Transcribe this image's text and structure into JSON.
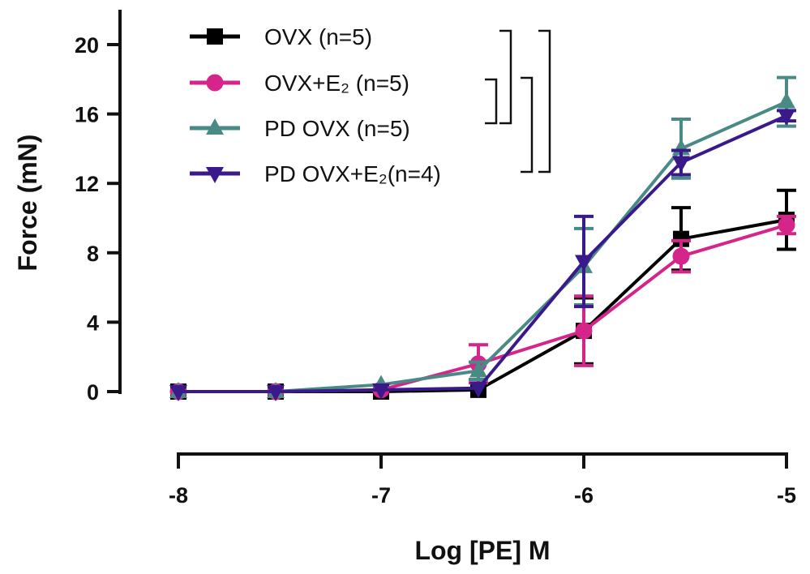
{
  "chart_data": {
    "type": "line",
    "xlabel": "Log [PE] M",
    "ylabel": "Force (mN)",
    "xlim": [
      -8,
      -5
    ],
    "ylim": [
      0,
      20
    ],
    "x_ticks": [
      "-8",
      "-7",
      "-6",
      "-5"
    ],
    "y_ticks": [
      "0",
      "4",
      "8",
      "12",
      "16",
      "20"
    ],
    "grid": false,
    "legend_position": "top-left",
    "x": [
      -8,
      -7.52,
      -7,
      -6.52,
      -6,
      -5.52,
      -5
    ],
    "series": [
      {
        "name": "OVX (n=5)",
        "color": "#000000",
        "marker": "square",
        "values": [
          0,
          0,
          0,
          0.1,
          3.5,
          8.8,
          9.9
        ],
        "errors": [
          0,
          0,
          0,
          0,
          1.9,
          1.8,
          1.7
        ]
      },
      {
        "name": "OVX+E₂ (n=5)",
        "color": "#d6258a",
        "marker": "circle",
        "values": [
          0,
          0,
          0.1,
          1.6,
          3.5,
          7.8,
          9.6
        ],
        "errors": [
          0,
          0,
          0,
          1.1,
          2.0,
          0.9,
          0.5
        ]
      },
      {
        "name": "PD OVX (n=5)",
        "color": "#4a8a86",
        "marker": "triangle-up",
        "values": [
          0,
          0,
          0.4,
          1.2,
          7.2,
          14.0,
          16.7
        ],
        "errors": [
          0,
          0,
          0,
          0.5,
          2.2,
          1.7,
          1.4
        ]
      },
      {
        "name": "PD OVX+E₂(n=4)",
        "color": "#3a1a8a",
        "marker": "triangle-down",
        "values": [
          0,
          0,
          0.1,
          0.2,
          7.5,
          13.2,
          15.9
        ],
        "errors": [
          0,
          0,
          0,
          0,
          2.6,
          0.7,
          0.3
        ]
      }
    ],
    "significance_brackets": [
      [
        "OVX+E₂ (n=5)",
        "PD OVX (n=5)"
      ],
      [
        "OVX (n=5)",
        "PD OVX (n=5)"
      ],
      [
        "OVX+E₂ (n=5)",
        "PD OVX+E₂(n=4)"
      ],
      [
        "OVX (n=5)",
        "PD OVX+E₂(n=4)"
      ]
    ]
  }
}
